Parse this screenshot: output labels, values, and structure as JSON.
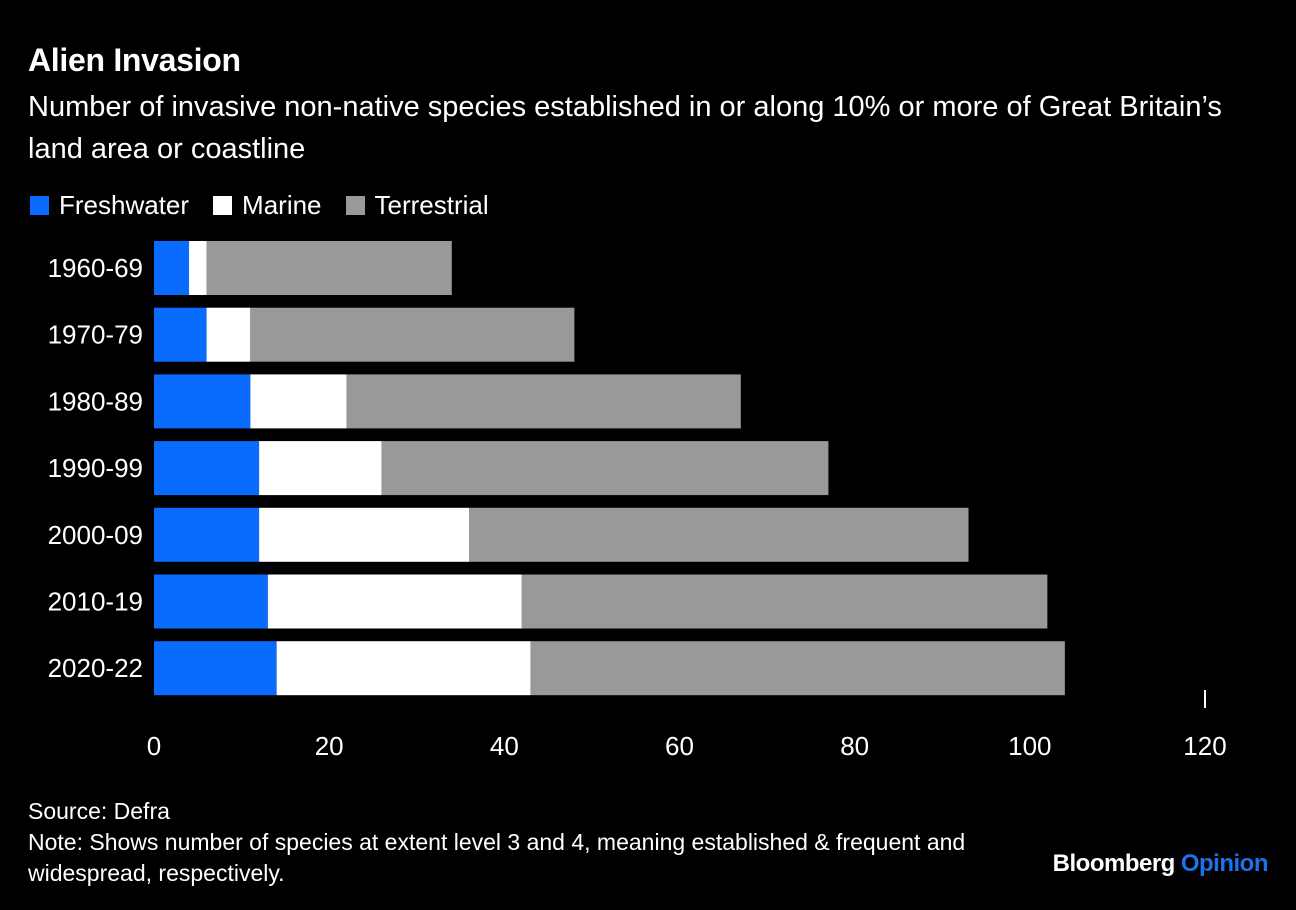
{
  "header": {
    "title": "Alien Invasion",
    "subtitle": "Number of invasive non-native species established in or along 10% or more of Great Britain’s land area or coastline"
  },
  "footer": {
    "source": "Source: Defra",
    "note": "Note: Shows number of species at extent level 3 and 4, meaning established & frequent and widespread, respectively."
  },
  "brand": {
    "name": "Bloomberg",
    "suffix": "Opinion",
    "suffix_color": "#1a73e8"
  },
  "colors": {
    "background": "#000000",
    "freshwater": "#0a6cff",
    "marine": "#ffffff",
    "terrestrial": "#999999",
    "text": "#ffffff"
  },
  "chart_data": {
    "type": "bar",
    "orientation": "horizontal",
    "stacked": true,
    "categories": [
      "1960-69",
      "1970-79",
      "1980-89",
      "1990-99",
      "2000-09",
      "2010-19",
      "2020-22"
    ],
    "series": [
      {
        "name": "Freshwater",
        "color": "#0a6cff",
        "values": [
          4,
          6,
          11,
          12,
          12,
          13,
          14
        ]
      },
      {
        "name": "Marine",
        "color": "#ffffff",
        "values": [
          2,
          5,
          11,
          14,
          24,
          29,
          29
        ]
      },
      {
        "name": "Terrestrial",
        "color": "#999999",
        "values": [
          28,
          37,
          45,
          51,
          57,
          60,
          61
        ]
      }
    ],
    "xlim": [
      0,
      120
    ],
    "xticks": [
      "0",
      "20",
      "40",
      "60",
      "80",
      "100",
      "120"
    ],
    "xlabel": "",
    "ylabel": "",
    "grid": false,
    "legend_position": "top-left"
  }
}
